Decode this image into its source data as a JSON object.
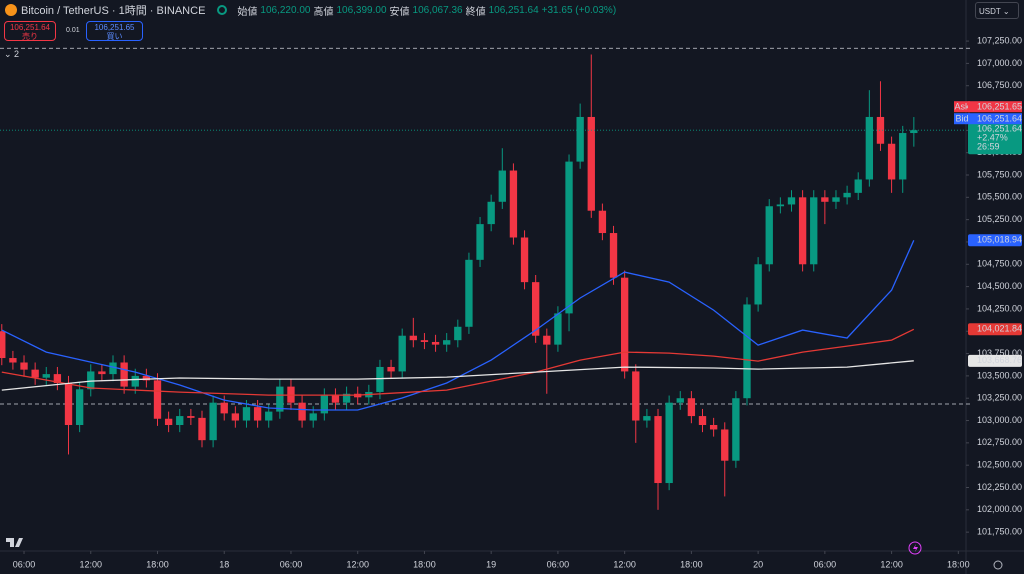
{
  "header": {
    "symbol": "Bitcoin / TetherUS · 1時間 · BINANCE",
    "ohlc": [
      {
        "label": "始値",
        "value": "106,220.00"
      },
      {
        "label": "高値",
        "value": "106,399.00"
      },
      {
        "label": "安値",
        "value": "106,067.36"
      },
      {
        "label": "終値",
        "value": "106,251.64"
      }
    ],
    "change": "+31.65 (+0.03%)",
    "sell": {
      "price": "106,251.64",
      "label": "売り"
    },
    "quantity": "0.01",
    "buy": {
      "price": "106,251.65",
      "label": "買い"
    },
    "indicator_count": "2",
    "currency": "USDT"
  },
  "chart_data": {
    "type": "candlestick",
    "x": [
      4,
      5,
      6,
      7,
      8,
      9,
      10,
      11,
      12,
      13,
      14,
      15,
      16,
      17,
      18,
      19,
      20,
      21,
      22,
      23,
      24,
      25,
      26,
      27,
      28,
      29,
      30,
      31,
      32,
      33,
      34,
      35,
      36,
      37,
      38,
      39,
      40,
      41,
      42,
      43,
      44,
      45,
      46,
      47,
      48,
      49,
      50,
      51,
      52,
      53,
      54,
      55,
      56,
      57,
      58,
      59,
      60,
      61,
      62,
      63,
      64,
      65,
      66,
      67,
      68,
      69,
      70,
      71,
      72,
      73,
      74,
      75,
      76,
      77,
      78,
      79,
      80,
      81,
      82,
      83,
      84,
      85,
      86
    ],
    "open": [
      104000,
      103700,
      103650,
      103570,
      103480,
      103520,
      103420,
      102950,
      103350,
      103550,
      103520,
      103650,
      103380,
      103500,
      103450,
      103020,
      102950,
      103050,
      103030,
      102780,
      103200,
      103080,
      103000,
      103150,
      103000,
      103100,
      103380,
      103200,
      103000,
      103080,
      103280,
      103200,
      103300,
      103260,
      103320,
      103600,
      103550,
      103950,
      103900,
      103880,
      103850,
      103900,
      104050,
      104800,
      105200,
      105450,
      105800,
      105050,
      104550,
      103950,
      103850,
      104200,
      105900,
      106400,
      105350,
      105100,
      104600,
      103550,
      103000,
      103050,
      102300,
      103200,
      103250,
      103050,
      102950,
      102900,
      102550,
      103250,
      104300,
      104750,
      105400,
      105420,
      105500,
      104750,
      105500,
      105450,
      105500,
      105550,
      105700,
      106400,
      106100,
      105700,
      106220
    ],
    "high": [
      104080,
      103780,
      103730,
      103650,
      103600,
      103600,
      103500,
      103430,
      103630,
      103630,
      103730,
      103730,
      103580,
      103580,
      103530,
      103100,
      103130,
      103130,
      103110,
      103280,
      103280,
      103160,
      103230,
      103230,
      103180,
      103460,
      103460,
      103280,
      103160,
      103360,
      103360,
      103380,
      103380,
      103400,
      103680,
      103680,
      104030,
      104150,
      103980,
      103960,
      103980,
      104130,
      104880,
      105280,
      105530,
      106050,
      105880,
      105130,
      104630,
      104030,
      104280,
      105980,
      106550,
      107100,
      105430,
      105180,
      104680,
      103630,
      103130,
      103130,
      103280,
      103330,
      103330,
      103130,
      103030,
      102980,
      103330,
      104380,
      104830,
      105480,
      105500,
      105580,
      105580,
      105580,
      105580,
      105580,
      105630,
      105780,
      106700,
      106800,
      106180,
      106300,
      106399
    ],
    "low": [
      103620,
      103570,
      103490,
      103400,
      103400,
      103340,
      102620,
      102870,
      103270,
      103440,
      103440,
      103300,
      103300,
      103370,
      102940,
      102870,
      102870,
      102950,
      102700,
      102700,
      103000,
      102920,
      102920,
      102920,
      102920,
      103020,
      103120,
      102920,
      102920,
      103000,
      103120,
      103120,
      103180,
      103180,
      103240,
      103470,
      103470,
      103820,
      103800,
      103770,
      103770,
      103820,
      103970,
      104720,
      105120,
      105370,
      104970,
      104470,
      103870,
      103300,
      103770,
      104000,
      105820,
      105270,
      105020,
      104520,
      103470,
      102750,
      102920,
      102000,
      102220,
      103120,
      102970,
      102870,
      102820,
      102150,
      102470,
      103170,
      104220,
      104670,
      105320,
      105340,
      104670,
      104670,
      105200,
      105370,
      105420,
      105470,
      105620,
      106020,
      105550,
      105550,
      106067.36
    ],
    "close": [
      103700,
      103650,
      103570,
      103480,
      103520,
      103420,
      102950,
      103350,
      103550,
      103520,
      103650,
      103380,
      103500,
      103450,
      103020,
      102950,
      103050,
      103030,
      102780,
      103200,
      103080,
      103000,
      103150,
      103000,
      103100,
      103380,
      103200,
      103000,
      103080,
      103280,
      103200,
      103300,
      103260,
      103320,
      103600,
      103550,
      103950,
      103900,
      103880,
      103850,
      103900,
      104050,
      104800,
      105200,
      105450,
      105800,
      105050,
      104550,
      103950,
      103850,
      104200,
      105900,
      106400,
      105350,
      105100,
      104600,
      103550,
      103000,
      103050,
      102300,
      103200,
      103250,
      103050,
      102950,
      102900,
      102550,
      103250,
      104300,
      104750,
      105400,
      105420,
      105500,
      104750,
      105500,
      105450,
      105500,
      105550,
      105700,
      106400,
      106100,
      105700,
      106220,
      106251.64
    ],
    "up_color": "#089981",
    "down_color": "#f23645",
    "xlim": [
      3.84,
      90.6
    ],
    "xticks": [
      {
        "value": 6,
        "label": "06:00"
      },
      {
        "value": 12,
        "label": "12:00"
      },
      {
        "value": 18,
        "label": "18:00"
      },
      {
        "value": 24,
        "label": "18"
      },
      {
        "value": 30,
        "label": "06:00"
      },
      {
        "value": 36,
        "label": "12:00"
      },
      {
        "value": 42,
        "label": "18:00"
      },
      {
        "value": 48,
        "label": "19"
      },
      {
        "value": 54,
        "label": "06:00"
      },
      {
        "value": 60,
        "label": "12:00"
      },
      {
        "value": 66,
        "label": "18:00"
      },
      {
        "value": 72,
        "label": "20"
      },
      {
        "value": 78,
        "label": "06:00"
      },
      {
        "value": 84,
        "label": "12:00"
      },
      {
        "value": 90,
        "label": "18:00"
      }
    ],
    "ylim": [
      101550,
      107710
    ],
    "yticks": [
      {
        "value": 101750,
        "label": "101,750.00"
      },
      {
        "value": 102000,
        "label": "102,000.00"
      },
      {
        "value": 102250,
        "label": "102,250.00"
      },
      {
        "value": 102500,
        "label": "102,500.00"
      },
      {
        "value": 102750,
        "label": "102,750.00"
      },
      {
        "value": 103000,
        "label": "103,000.00"
      },
      {
        "value": 103250,
        "label": "103,250.00"
      },
      {
        "value": 103500,
        "label": "103,500.00"
      },
      {
        "value": 103750,
        "label": "103,750.00"
      },
      {
        "value": 104000,
        "label": "104,000.00"
      },
      {
        "value": 104250,
        "label": "104,250.00"
      },
      {
        "value": 104500,
        "label": "104,500.00"
      },
      {
        "value": 104750,
        "label": "104,750.00"
      },
      {
        "value": 105000,
        "label": "105,000.00"
      },
      {
        "value": 105250,
        "label": "105,250.00"
      },
      {
        "value": 105500,
        "label": "105,500.00"
      },
      {
        "value": 105750,
        "label": "105,750.00"
      },
      {
        "value": 106000,
        "label": "106,000.00"
      },
      {
        "value": 106250,
        "label": "106,250.00"
      },
      {
        "value": 106500,
        "label": "106,500.00"
      },
      {
        "value": 106750,
        "label": "106,750.00"
      },
      {
        "value": 107000,
        "label": "107,000.00"
      },
      {
        "value": 107250,
        "label": "107,250.00"
      }
    ],
    "series": [
      {
        "color": "#2962ff",
        "x": [
          4,
          8,
          12,
          16,
          20,
          24,
          28,
          32,
          36,
          40,
          44,
          48,
          52,
          56,
          60,
          64,
          68,
          72,
          76,
          80,
          84,
          86
        ],
        "values": [
          104013,
          103767,
          103655,
          103543,
          103398,
          103229,
          103140,
          103118,
          103118,
          103252,
          103420,
          103677,
          104013,
          104372,
          104663,
          104551,
          104237,
          103845,
          104013,
          103924,
          104461,
          105018.94
        ],
        "last_label": "105,018.94",
        "label_text_color": "#ffffff"
      },
      {
        "color": "#e53935",
        "x": [
          4,
          12,
          20,
          28,
          36,
          44,
          52,
          56,
          60,
          64,
          68,
          72,
          76,
          80,
          84,
          86
        ],
        "values": [
          103543,
          103364,
          103319,
          103285,
          103285,
          103341,
          103543,
          103677,
          103767,
          103755,
          103722,
          103666,
          103767,
          103834,
          103901,
          104021.84
        ],
        "last_label": "104,021.84",
        "label_text_color": "#ffffff"
      },
      {
        "color": "#e6e6e6",
        "x": [
          4,
          12,
          20,
          28,
          36,
          44,
          52,
          60,
          68,
          72,
          80,
          86
        ],
        "values": [
          103341,
          103442,
          103476,
          103464,
          103464,
          103487,
          103543,
          103599,
          103588,
          103576,
          103599,
          103668.76
        ],
        "last_label": "103,668.76",
        "label_text_color": "#131722"
      }
    ],
    "levels": [
      107170,
      103185
    ],
    "price_tags": [
      {
        "name": "Ask",
        "value": 106251.65,
        "label": "106,251.65",
        "color": "#f23645"
      },
      {
        "name": "Bid",
        "value": 106251.64,
        "label": "106,251.64",
        "color": "#2962ff"
      }
    ],
    "last_price": {
      "value": 106251.64,
      "label": "106,251.64",
      "change": "+2.47%",
      "countdown": "26:59",
      "color": "#089981"
    }
  }
}
